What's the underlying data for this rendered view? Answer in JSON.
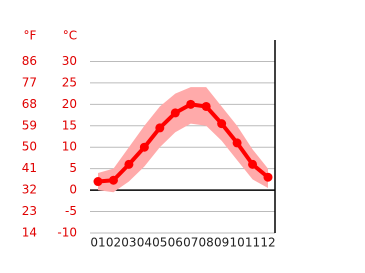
{
  "chart_data": {
    "type": "climate",
    "y_unit": "°C",
    "y2_unit": "°F",
    "categories": [
      "01",
      "02",
      "03",
      "04",
      "05",
      "06",
      "07",
      "08",
      "09",
      "10",
      "11",
      "12"
    ],
    "values": [
      2,
      2.3,
      6,
      10,
      14.5,
      18,
      20,
      19.5,
      15.5,
      11,
      6,
      3
    ],
    "band": {
      "low": [
        0,
        -0.5,
        2,
        5.5,
        10,
        13.5,
        15.5,
        15,
        11.5,
        7,
        2.5,
        0.5
      ],
      "high": [
        4,
        5,
        10,
        15,
        19.5,
        22.5,
        24,
        24,
        19.5,
        15,
        9.5,
        5
      ]
    },
    "color": "#ff0000",
    "band_color": "#ffaaaa",
    "ylim": [
      -10,
      35
    ],
    "yticks": [
      -10,
      -5,
      0,
      5,
      10,
      15,
      20,
      25,
      30
    ],
    "y2lim": [
      14,
      95
    ],
    "y2ticks": [
      14,
      23,
      32,
      41,
      50,
      59,
      68,
      77,
      86
    ],
    "grid": true
  }
}
